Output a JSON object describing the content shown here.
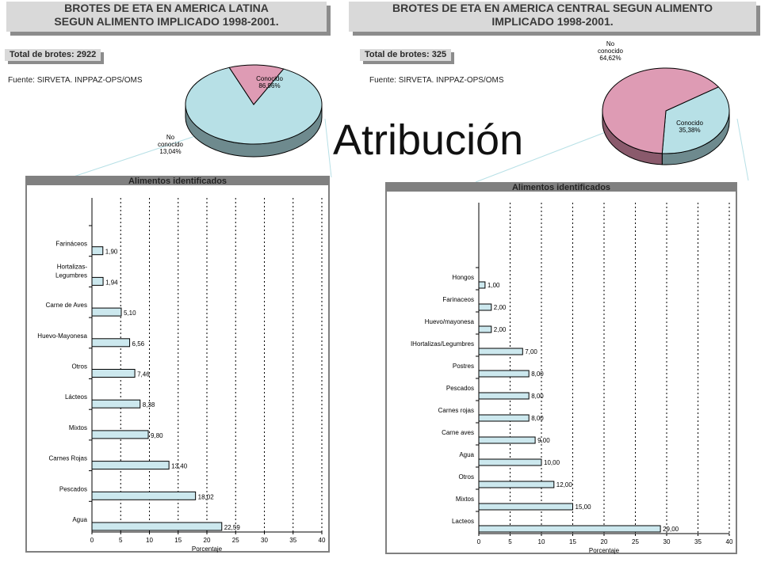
{
  "slide_title": "Atribución",
  "left": {
    "title_line1": "BROTES DE ETA EN AMERICA LATINA",
    "title_line2": "SEGUN ALIMENTO IMPLICADO 1998-2001.",
    "total_label": "Total de brotes: 2922",
    "source": "Fuente: SIRVETA. INPPAZ-OPS/OMS"
  },
  "right": {
    "title_line1": "BROTES DE ETA EN AMERICA CENTRAL SEGUN ALIMENTO",
    "title_line2": "IMPLICADO 1998-2001.",
    "total_label": "Total de brotes: 325",
    "source": "Fuente: SIRVETA. INPPAZ-OPS/OMS"
  },
  "colors": {
    "pie_known": "#b7e0e6",
    "pie_unknown": "#de9bb4",
    "bar_fill": "#cce8ee",
    "panel_bg": "#808080",
    "plot_bg": "#ffffff"
  },
  "chart_data": [
    {
      "type": "pie",
      "slices": [
        {
          "label": "Conocido",
          "value": 86.96,
          "value_label": "86,96%"
        },
        {
          "label": "No conocido",
          "value": 13.04,
          "value_label": "13,04%"
        }
      ]
    },
    {
      "type": "bar",
      "orientation": "horizontal",
      "title": "Alimentos identificados",
      "xlabel": "Porcentaje",
      "xlim": [
        0,
        40
      ],
      "xticks": [
        "0",
        "5",
        "10",
        "15",
        "20",
        "25",
        "30",
        "35",
        "40"
      ],
      "categories": [
        "Farináceos",
        "Hortalizas-\nLegumbres",
        "Carne de Aves",
        "Huevo-Mayonesa",
        "Otros",
        "Lácteos",
        "Mixtos",
        "Carnes Rojas",
        "Pescados",
        "Agua"
      ],
      "values": [
        1.9,
        1.94,
        5.1,
        6.56,
        7.46,
        8.38,
        9.8,
        13.4,
        18.02,
        22.59
      ],
      "value_labels": [
        "1,90",
        "1,94",
        "5,10",
        "6,56",
        "7,46",
        "8,38",
        "9,80",
        "13,40",
        "18,02",
        "22,59"
      ],
      "grid": true
    },
    {
      "type": "pie",
      "slices": [
        {
          "label": "Conocido",
          "value": 35.38,
          "value_label": "35,38%"
        },
        {
          "label": "No conocido",
          "value": 64.62,
          "value_label": "64,62%"
        }
      ]
    },
    {
      "type": "bar",
      "orientation": "horizontal",
      "title": "Alimentos identificados",
      "xlabel": "Porcentaje",
      "xlim": [
        0,
        40
      ],
      "xticks": [
        "0",
        "5",
        "10",
        "15",
        "20",
        "25",
        "30",
        "35",
        "40"
      ],
      "categories": [
        "Hongos",
        "Farinaceos",
        "Huevo/mayonesa",
        "IHortalizas/Legumbres",
        "Postres",
        "Pescados",
        "Carnes rojas",
        "Carne aves",
        "Agua",
        "Otros",
        "Mixtos",
        "Lacteos"
      ],
      "values": [
        1.0,
        2.0,
        2.0,
        7.0,
        8.0,
        8.0,
        8.0,
        9.0,
        10.0,
        12.0,
        15.0,
        29.0
      ],
      "value_labels": [
        "1,00",
        "2,00",
        "2,00",
        "7,00",
        "8,00",
        "8,00",
        "8,00",
        "9,00",
        "10,00",
        "12,00",
        "15,00",
        "29,00"
      ],
      "grid": true
    }
  ]
}
